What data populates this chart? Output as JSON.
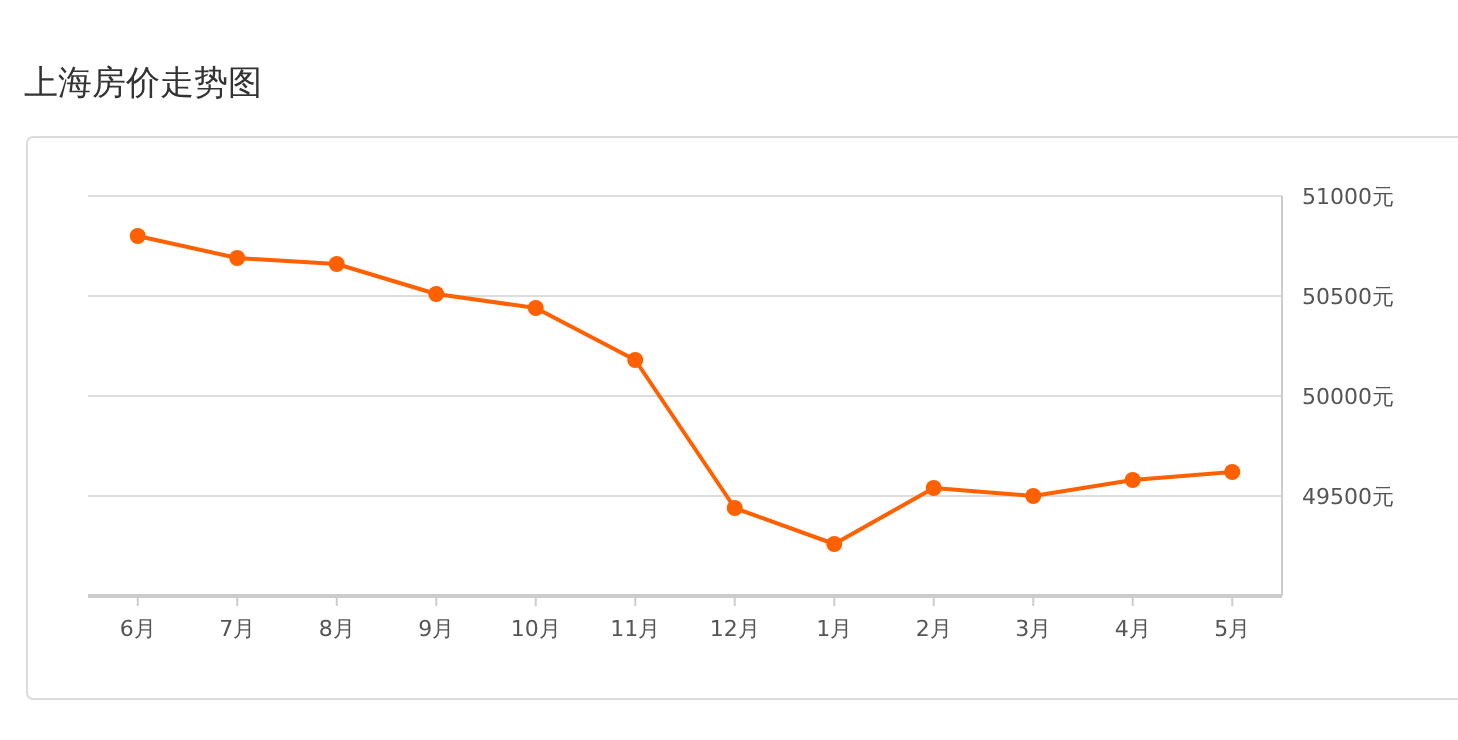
{
  "chart_data": {
    "type": "line",
    "title": "上海房价走势图",
    "categories": [
      "6月",
      "7月",
      "8月",
      "9月",
      "10月",
      "11月",
      "12月",
      "1月",
      "2月",
      "3月",
      "4月",
      "5月"
    ],
    "series": [
      {
        "color": "#ff6000",
        "values": [
          50800,
          50690,
          50660,
          50510,
          50440,
          50180,
          49440,
          49260,
          49540,
          49500,
          49580,
          49620
        ]
      }
    ],
    "ylim": [
      49000,
      51000
    ],
    "yticks": [
      {
        "value": 49500,
        "label": "49500元"
      },
      {
        "value": 50000,
        "label": "50000元"
      },
      {
        "value": 50500,
        "label": "50500元"
      },
      {
        "value": 51000,
        "label": "51000元"
      }
    ],
    "grid": "y",
    "marker": "circle",
    "line_style": "solid"
  }
}
